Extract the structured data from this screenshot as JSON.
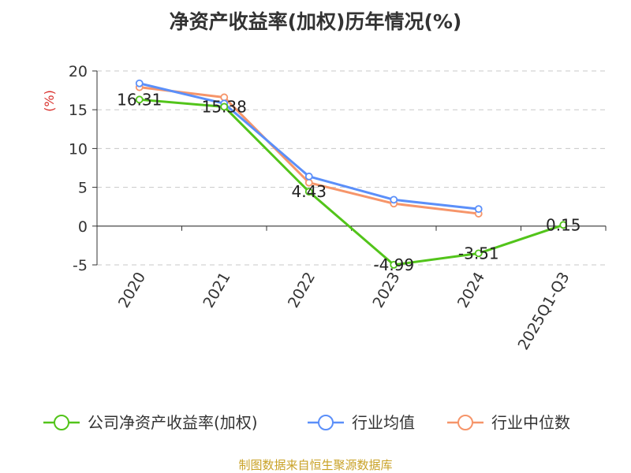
{
  "chart_data": {
    "type": "line",
    "title": "净资产收益率(加权)历年情况(%)",
    "ylabel": "(%)",
    "categories": [
      "2020",
      "2021",
      "2022",
      "2023",
      "2024",
      "2025Q1-Q3"
    ],
    "ylim": [
      -5,
      20
    ],
    "yticks": [
      -5,
      0,
      5,
      10,
      15,
      20
    ],
    "grid": true,
    "legend_position": "bottom",
    "series": [
      {
        "name": "公司净资产收益率(加权)",
        "color": "#52c41a",
        "values": [
          16.31,
          15.38,
          4.43,
          -4.99,
          -3.51,
          0.15
        ],
        "labels": [
          "16.31",
          "15.38",
          "4.43",
          "-4.99",
          "-3.51",
          "0.15"
        ]
      },
      {
        "name": "行业均值",
        "color": "#5b8ff9",
        "values": [
          18.4,
          15.8,
          6.4,
          3.4,
          2.2,
          null
        ]
      },
      {
        "name": "行业中位数",
        "color": "#f6956a",
        "values": [
          17.9,
          16.6,
          5.6,
          2.9,
          1.6,
          null
        ]
      }
    ]
  },
  "source": "制图数据来自恒生聚源数据库"
}
